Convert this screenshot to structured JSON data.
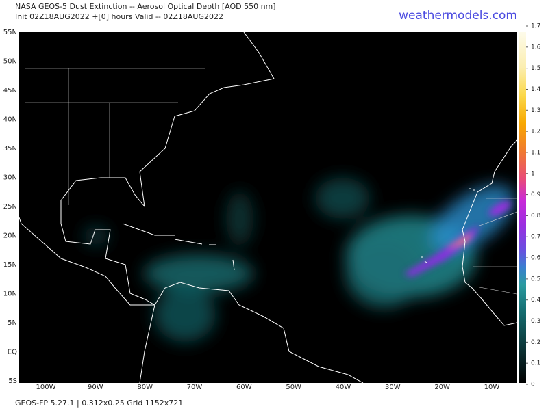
{
  "header": {
    "title": "NASA GEOS-5 Dust Extinction -- Aerosol Optical Depth [AOD 550 nm]",
    "subtitle": "Init 02Z18AUG2022 +[0] hours Valid -- 02Z18AUG2022",
    "brand": "weathermodels.com"
  },
  "map": {
    "lat_labels": [
      "55N",
      "50N",
      "45N",
      "40N",
      "35N",
      "30N",
      "25N",
      "20N",
      "15N",
      "10N",
      "5N",
      "EQ",
      "5S"
    ],
    "lon_labels": [
      "100W",
      "90W",
      "80W",
      "70W",
      "60W",
      "50W",
      "40W",
      "30W",
      "20W",
      "10W"
    ]
  },
  "colorbar": {
    "ylim": [
      0,
      1.7
    ],
    "ticks": [
      0,
      0.1,
      0.2,
      0.3,
      0.4,
      0.5,
      0.6,
      0.7,
      0.8,
      0.9,
      1,
      1.1,
      1.2,
      1.3,
      1.4,
      1.5,
      1.6,
      1.7
    ]
  },
  "footer": "GEOS-FP 5.27.1 | 0.312x0.25 Grid 1152x721"
}
